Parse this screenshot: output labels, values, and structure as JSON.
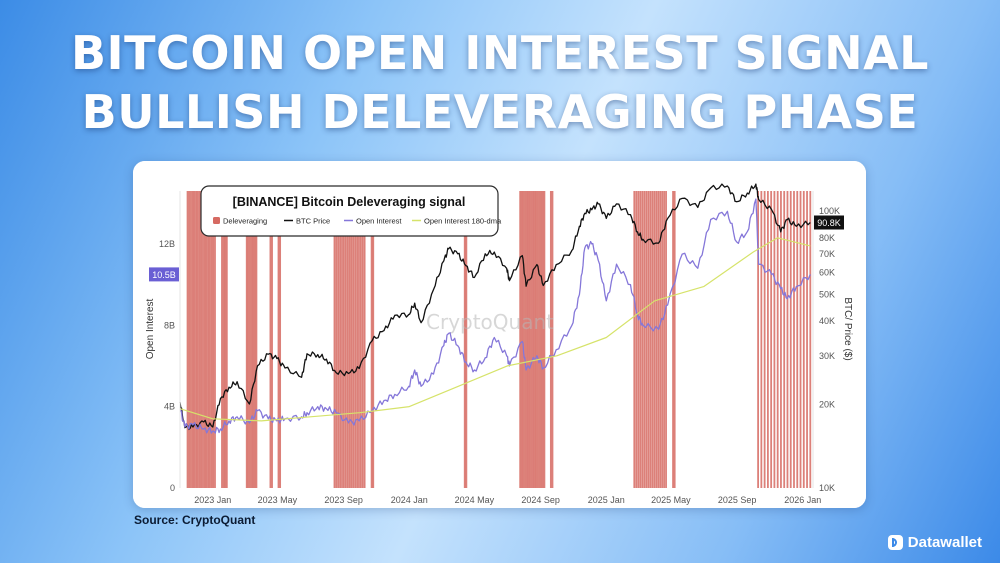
{
  "headline": {
    "line1": "BITCOIN OPEN INTEREST SIGNAL",
    "line2": "BULLISH DELEVERAGING PHASE"
  },
  "source": "Source: CryptoQuant",
  "brand": {
    "name": "Datawallet",
    "icon": "datawallet-logo-icon"
  },
  "chart_data": {
    "type": "line",
    "title": "[BINANCE] Bitcoin Deleveraging signal",
    "watermark": "CryptoQuant",
    "legend": [
      {
        "name": "Deleveraging",
        "color": "#d66a62",
        "kind": "box"
      },
      {
        "name": "BTC Price",
        "color": "#111111",
        "kind": "line"
      },
      {
        "name": "Open Interest",
        "color": "#8577d9",
        "kind": "line"
      },
      {
        "name": "Open Interest 180-dma",
        "color": "#d6e36a",
        "kind": "line"
      }
    ],
    "legend_position": "top-left",
    "grid": false,
    "x_axis": {
      "range": [
        "2022-11-01",
        "2026-01-20"
      ],
      "ticks": [
        {
          "date": "2023-01-01",
          "label": "2023 Jan"
        },
        {
          "date": "2023-05-01",
          "label": "2023 May"
        },
        {
          "date": "2023-09-01",
          "label": "2023 Sep"
        },
        {
          "date": "2024-01-01",
          "label": "2024 Jan"
        },
        {
          "date": "2024-05-01",
          "label": "2024 May"
        },
        {
          "date": "2024-09-01",
          "label": "2024 Sep"
        },
        {
          "date": "2025-01-01",
          "label": "2025 Jan"
        },
        {
          "date": "2025-05-01",
          "label": "2025 May"
        },
        {
          "date": "2025-09-01",
          "label": "2025 Sep"
        },
        {
          "date": "2026-01-01",
          "label": "2026 Jan"
        }
      ]
    },
    "y_left": {
      "label": "Open Interest",
      "range": [
        0,
        14.6
      ],
      "unit": "B",
      "ticks": [
        {
          "value": 0,
          "label": "0"
        },
        {
          "value": 4,
          "label": "4B"
        },
        {
          "value": 8,
          "label": "8B"
        },
        {
          "value": 12,
          "label": "12B"
        }
      ],
      "current": {
        "value": 10.5,
        "label": "10.5B",
        "color": "#6a5fd4"
      }
    },
    "y_right": {
      "label": "BTC/ Price ($)",
      "scale": "log",
      "range": [
        10000,
        118000
      ],
      "ticks": [
        {
          "value": 10000,
          "label": "10K"
        },
        {
          "value": 20000,
          "label": "20K"
        },
        {
          "value": 30000,
          "label": "30K"
        },
        {
          "value": 40000,
          "label": "40K"
        },
        {
          "value": 50000,
          "label": "50K"
        },
        {
          "value": 60000,
          "label": "60K"
        },
        {
          "value": 70000,
          "label": "70K"
        },
        {
          "value": 80000,
          "label": "80K"
        },
        {
          "value": 100000,
          "label": "100K"
        }
      ],
      "current": {
        "value": 90800,
        "label": "90.8K",
        "color": "#111111"
      }
    },
    "deleveraging_periods": [
      [
        "2022-11-15",
        "2023-01-05"
      ],
      [
        "2023-01-18",
        "2023-01-28"
      ],
      [
        "2023-03-05",
        "2023-03-25"
      ],
      [
        "2023-04-18",
        "2023-04-22"
      ],
      [
        "2023-05-03",
        "2023-05-07"
      ],
      [
        "2023-08-15",
        "2023-10-10"
      ],
      [
        "2023-10-23",
        "2023-10-28"
      ],
      [
        "2024-04-13",
        "2024-04-17"
      ],
      [
        "2024-07-25",
        "2024-09-08"
      ],
      [
        "2024-09-20",
        "2024-09-24"
      ],
      [
        "2025-02-22",
        "2025-04-22"
      ],
      [
        "2025-05-05",
        "2025-05-09"
      ],
      [
        "2025-10-10",
        "2026-01-15"
      ]
    ],
    "series": [
      {
        "name": "BTC Price",
        "axis": "right",
        "color": "#111111",
        "points": [
          [
            "2022-11-01",
            20400
          ],
          [
            "2022-11-10",
            16500
          ],
          [
            "2022-11-25",
            16600
          ],
          [
            "2022-12-15",
            17300
          ],
          [
            "2023-01-01",
            16600
          ],
          [
            "2023-01-15",
            21000
          ],
          [
            "2023-01-31",
            23100
          ],
          [
            "2023-02-15",
            24200
          ],
          [
            "2023-03-10",
            20100
          ],
          [
            "2023-03-25",
            27600
          ],
          [
            "2023-04-14",
            30400
          ],
          [
            "2023-04-30",
            29300
          ],
          [
            "2023-05-15",
            27100
          ],
          [
            "2023-06-15",
            25100
          ],
          [
            "2023-06-25",
            30500
          ],
          [
            "2023-07-15",
            30300
          ],
          [
            "2023-07-31",
            29200
          ],
          [
            "2023-08-18",
            26100
          ],
          [
            "2023-09-10",
            25900
          ],
          [
            "2023-09-30",
            27000
          ],
          [
            "2023-10-24",
            34000
          ],
          [
            "2023-11-15",
            37000
          ],
          [
            "2023-12-05",
            42000
          ],
          [
            "2023-12-31",
            42300
          ],
          [
            "2024-01-11",
            46500
          ],
          [
            "2024-01-23",
            39500
          ],
          [
            "2024-02-15",
            52000
          ],
          [
            "2024-03-05",
            66000
          ],
          [
            "2024-03-14",
            73000
          ],
          [
            "2024-03-31",
            70000
          ],
          [
            "2024-04-15",
            63500
          ],
          [
            "2024-05-01",
            57500
          ],
          [
            "2024-05-21",
            70000
          ],
          [
            "2024-06-07",
            71000
          ],
          [
            "2024-06-30",
            62000
          ],
          [
            "2024-07-05",
            56000
          ],
          [
            "2024-07-29",
            69000
          ],
          [
            "2024-08-05",
            53500
          ],
          [
            "2024-08-25",
            64000
          ],
          [
            "2024-09-06",
            53800
          ],
          [
            "2024-09-30",
            64000
          ],
          [
            "2024-10-29",
            72000
          ],
          [
            "2024-11-12",
            88000
          ],
          [
            "2024-11-22",
            98000
          ],
          [
            "2024-12-05",
            101000
          ],
          [
            "2024-12-17",
            106000
          ],
          [
            "2025-01-01",
            94000
          ],
          [
            "2025-01-20",
            106000
          ],
          [
            "2025-02-15",
            97000
          ],
          [
            "2025-02-28",
            84000
          ],
          [
            "2025-03-10",
            79000
          ],
          [
            "2025-04-08",
            76500
          ],
          [
            "2025-04-25",
            94000
          ],
          [
            "2025-05-22",
            111000
          ],
          [
            "2025-06-20",
            103000
          ],
          [
            "2025-07-14",
            121000
          ],
          [
            "2025-08-14",
            123000
          ],
          [
            "2025-08-31",
            108000
          ],
          [
            "2025-09-20",
            116000
          ],
          [
            "2025-10-06",
            125000
          ],
          [
            "2025-10-11",
            110000
          ],
          [
            "2025-11-04",
            101000
          ],
          [
            "2025-11-21",
            84000
          ],
          [
            "2025-12-03",
            93000
          ],
          [
            "2025-12-20",
            88000
          ],
          [
            "2026-01-15",
            90800
          ]
        ]
      },
      {
        "name": "Open Interest",
        "axis": "left",
        "color": "#8577d9",
        "points": [
          [
            "2022-11-01",
            3.9
          ],
          [
            "2022-11-10",
            3.0
          ],
          [
            "2022-11-25",
            3.1
          ],
          [
            "2022-12-15",
            2.9
          ],
          [
            "2023-01-01",
            2.8
          ],
          [
            "2023-01-15",
            2.9
          ],
          [
            "2023-01-31",
            3.3
          ],
          [
            "2023-02-15",
            3.5
          ],
          [
            "2023-03-10",
            3.2
          ],
          [
            "2023-03-25",
            3.8
          ],
          [
            "2023-04-14",
            3.4
          ],
          [
            "2023-04-30",
            3.3
          ],
          [
            "2023-05-15",
            3.4
          ],
          [
            "2023-06-15",
            3.5
          ],
          [
            "2023-06-25",
            3.7
          ],
          [
            "2023-07-15",
            4.0
          ],
          [
            "2023-07-31",
            3.9
          ],
          [
            "2023-08-18",
            3.7
          ],
          [
            "2023-09-10",
            3.2
          ],
          [
            "2023-09-30",
            3.3
          ],
          [
            "2023-10-24",
            3.8
          ],
          [
            "2023-11-15",
            4.3
          ],
          [
            "2023-12-05",
            4.6
          ],
          [
            "2023-12-31",
            5.0
          ],
          [
            "2024-01-11",
            5.8
          ],
          [
            "2024-01-23",
            5.0
          ],
          [
            "2024-02-15",
            5.6
          ],
          [
            "2024-03-05",
            7.0
          ],
          [
            "2024-03-14",
            7.6
          ],
          [
            "2024-03-31",
            7.0
          ],
          [
            "2024-04-15",
            6.2
          ],
          [
            "2024-05-01",
            5.8
          ],
          [
            "2024-05-21",
            6.4
          ],
          [
            "2024-06-07",
            7.4
          ],
          [
            "2024-06-30",
            6.5
          ],
          [
            "2024-07-05",
            6.0
          ],
          [
            "2024-07-29",
            7.2
          ],
          [
            "2024-08-05",
            5.8
          ],
          [
            "2024-08-25",
            6.5
          ],
          [
            "2024-09-06",
            5.9
          ],
          [
            "2024-09-30",
            6.8
          ],
          [
            "2024-10-29",
            8.0
          ],
          [
            "2024-11-12",
            9.5
          ],
          [
            "2024-11-22",
            11.8
          ],
          [
            "2024-12-05",
            12.0
          ],
          [
            "2024-12-17",
            11.2
          ],
          [
            "2025-01-01",
            9.2
          ],
          [
            "2025-01-20",
            11.0
          ],
          [
            "2025-02-15",
            10.0
          ],
          [
            "2025-02-28",
            8.5
          ],
          [
            "2025-03-10",
            8.0
          ],
          [
            "2025-04-08",
            7.8
          ],
          [
            "2025-04-25",
            9.0
          ],
          [
            "2025-05-22",
            11.5
          ],
          [
            "2025-06-20",
            10.8
          ],
          [
            "2025-07-14",
            13.2
          ],
          [
            "2025-08-14",
            13.6
          ],
          [
            "2025-08-31",
            12.1
          ],
          [
            "2025-09-20",
            12.6
          ],
          [
            "2025-10-06",
            14.2
          ],
          [
            "2025-10-11",
            11.0
          ],
          [
            "2025-11-04",
            10.5
          ],
          [
            "2025-11-21",
            9.8
          ],
          [
            "2025-12-03",
            9.3
          ],
          [
            "2025-12-20",
            9.9
          ],
          [
            "2026-01-15",
            10.5
          ]
        ]
      },
      {
        "name": "Open Interest 180-dma",
        "axis": "left",
        "color": "#d6e36a",
        "points": [
          [
            "2022-11-01",
            3.9
          ],
          [
            "2023-01-01",
            3.4
          ],
          [
            "2023-04-01",
            3.3
          ],
          [
            "2023-07-01",
            3.5
          ],
          [
            "2023-10-01",
            3.7
          ],
          [
            "2024-01-01",
            4.0
          ],
          [
            "2024-04-01",
            5.0
          ],
          [
            "2024-07-01",
            6.0
          ],
          [
            "2024-10-01",
            6.5
          ],
          [
            "2025-01-01",
            7.4
          ],
          [
            "2025-04-01",
            9.2
          ],
          [
            "2025-07-01",
            9.9
          ],
          [
            "2025-10-01",
            11.6
          ],
          [
            "2025-11-15",
            12.3
          ],
          [
            "2026-01-15",
            11.9
          ]
        ]
      }
    ]
  }
}
